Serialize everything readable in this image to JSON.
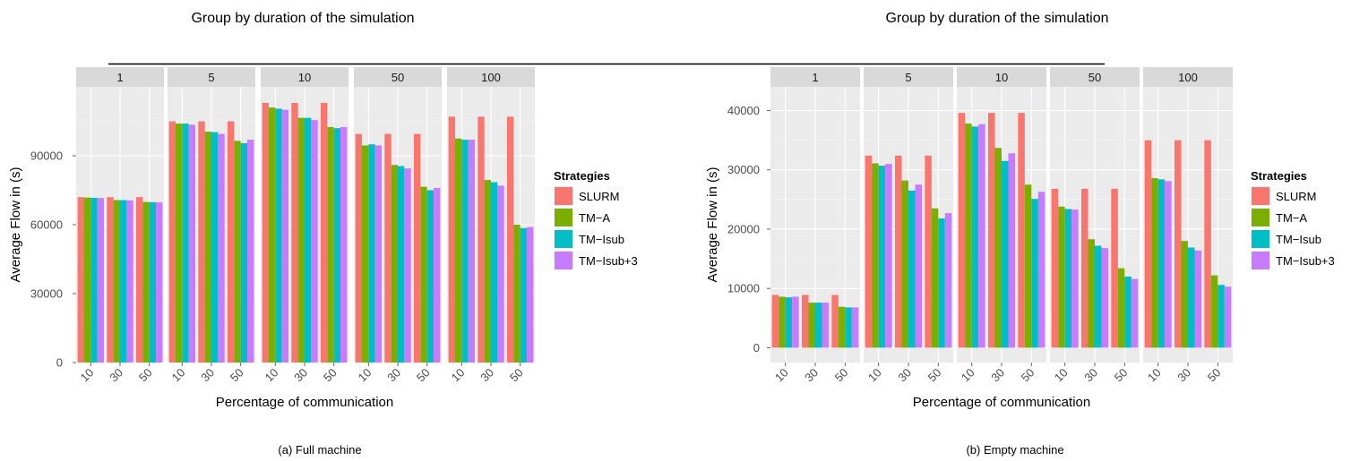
{
  "figure": {
    "header_rule": true
  },
  "chart_data": [
    {
      "type": "bar",
      "title": "Group by duration of the simulation",
      "caption": "(a)   Full machine",
      "xlabel": "Percentage of communication",
      "ylabel": "Average Flow in (s)",
      "ylim": [
        0,
        120000
      ],
      "yticks": [
        0,
        30000,
        60000,
        90000
      ],
      "ytick_labels": [
        "0",
        "30000",
        "60000",
        "90000"
      ],
      "grid": true,
      "legend_title": "Strategies",
      "legend_position": "right",
      "categories": [
        "10",
        "30",
        "50"
      ],
      "series_names": [
        "SLURM",
        "TM−A",
        "TM−Isub",
        "TM−Isub+3"
      ],
      "series_colors": [
        "#F8766D",
        "#7CAE00",
        "#00BFC4",
        "#C77CFF"
      ],
      "facets": [
        {
          "label": "1",
          "values": [
            [
              72000,
              71800,
              71700,
              71600
            ],
            [
              72000,
              70700,
              70700,
              70600
            ],
            [
              72000,
              69900,
              69800,
              69700
            ]
          ]
        },
        {
          "label": "5",
          "values": [
            [
              105000,
              104000,
              104000,
              103500
            ],
            [
              105000,
              100500,
              100300,
              99500
            ],
            [
              105000,
              96500,
              95500,
              97000
            ]
          ]
        },
        {
          "label": "10",
          "values": [
            [
              113000,
              111000,
              110500,
              110000
            ],
            [
              113000,
              106500,
              106500,
              105500
            ],
            [
              113000,
              102500,
              102000,
              102500
            ]
          ]
        },
        {
          "label": "50",
          "values": [
            [
              99500,
              94500,
              95000,
              94500
            ],
            [
              99500,
              86000,
              85500,
              84500
            ],
            [
              99500,
              76500,
              75000,
              76000
            ]
          ]
        },
        {
          "label": "100",
          "values": [
            [
              107000,
              97500,
              97000,
              97000
            ],
            [
              107000,
              79500,
              78500,
              77000
            ],
            [
              107000,
              60000,
              58500,
              59000
            ]
          ]
        }
      ]
    },
    {
      "type": "bar",
      "title": "Group by duration of the simulation",
      "caption": "(b)   Empty machine",
      "xlabel": "Percentage of communication",
      "ylabel": "Average Flow in (s)",
      "ylim": [
        -2500,
        44000
      ],
      "yticks": [
        0,
        10000,
        20000,
        30000,
        40000
      ],
      "ytick_labels": [
        "0",
        "10000",
        "20000",
        "30000",
        "40000"
      ],
      "grid": true,
      "legend_title": "Strategies",
      "legend_position": "right",
      "categories": [
        "10",
        "30",
        "50"
      ],
      "series_names": [
        "SLURM",
        "TM−A",
        "TM−Isub",
        "TM−Isub+3"
      ],
      "series_colors": [
        "#F8766D",
        "#7CAE00",
        "#00BFC4",
        "#C77CFF"
      ],
      "facets": [
        {
          "label": "1",
          "values": [
            [
              8900,
              8600,
              8500,
              8600
            ],
            [
              8900,
              7600,
              7600,
              7600
            ],
            [
              8900,
              6900,
              6800,
              6800
            ]
          ]
        },
        {
          "label": "5",
          "values": [
            [
              32400,
              31100,
              30700,
              31000
            ],
            [
              32400,
              28200,
              26500,
              27500
            ],
            [
              32400,
              23500,
              21800,
              22700
            ]
          ]
        },
        {
          "label": "10",
          "values": [
            [
              39600,
              37800,
              37300,
              37700
            ],
            [
              39600,
              33700,
              31500,
              32800
            ],
            [
              39600,
              27500,
              25100,
              26300
            ]
          ]
        },
        {
          "label": "50",
          "values": [
            [
              26800,
              23800,
              23400,
              23300
            ],
            [
              26800,
              18300,
              17200,
              16800
            ],
            [
              26800,
              13400,
              12000,
              11600
            ]
          ]
        },
        {
          "label": "100",
          "values": [
            [
              35000,
              28600,
              28400,
              28100
            ],
            [
              35000,
              18000,
              16900,
              16400
            ],
            [
              35000,
              12200,
              10600,
              10300
            ]
          ]
        }
      ]
    }
  ]
}
